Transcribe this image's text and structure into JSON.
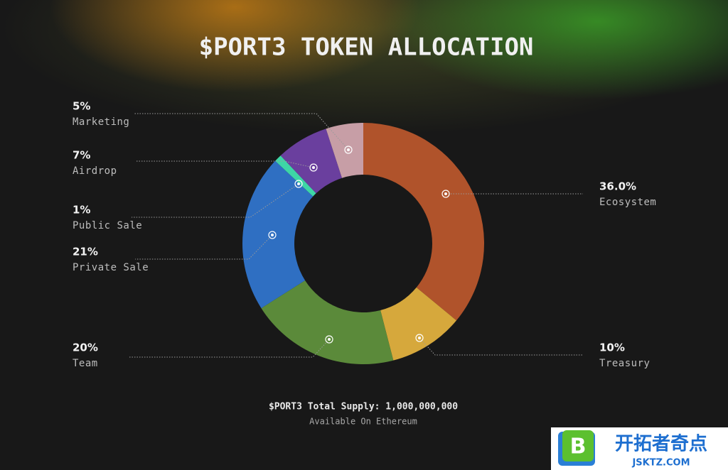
{
  "chart_data": {
    "type": "donut",
    "title": "$PORT3 TOKEN ALLOCATION",
    "categories": [
      "Ecosystem",
      "Treasury",
      "Team",
      "Private Sale",
      "Public Sale",
      "Airdrop",
      "Marketing"
    ],
    "values": [
      36,
      10,
      20,
      21,
      1,
      7,
      5
    ],
    "value_labels": [
      "36.0%",
      "10%",
      "20%",
      "21%",
      "1%",
      "7%",
      "5%"
    ],
    "colors": [
      "#b0532b",
      "#d6a83c",
      "#5b8a3a",
      "#2f6fc2",
      "#3ed6a6",
      "#6a3f9e",
      "#c79ea6"
    ],
    "footnote": "$PORT3 Total Supply: 1,000,000,000",
    "subfootnote": "Available On Ethereum"
  },
  "watermark": {
    "name": "开拓者奇点",
    "url": "JSKTZ.COM"
  }
}
